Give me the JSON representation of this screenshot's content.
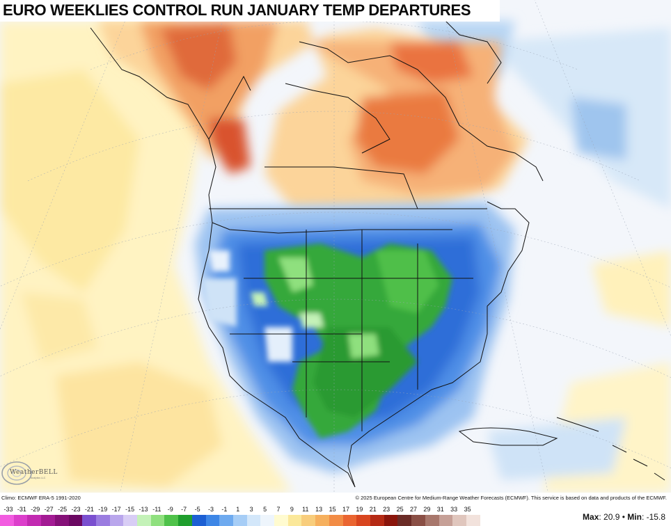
{
  "title": "EURO WEEKLIES CONTROL RUN JANUARY TEMP DEPARTURES",
  "logo": {
    "name": "WeatherBELL",
    "sub": "Analytics LLC"
  },
  "footer": {
    "climo": "Climo: ECMWF ERA-5 1991-2020",
    "copyright": "© 2025 European Centre for Medium-Range Weather Forecasts (ECMWF). This service is based on data and products of the ECMWF.",
    "max_label": "Max",
    "max_value": "20.9",
    "separator": "•",
    "min_label": "Min",
    "min_value": "-15.8"
  },
  "legend": {
    "labels": [
      "-33",
      "-31",
      "-29",
      "-27",
      "-25",
      "-23",
      "-21",
      "-19",
      "-17",
      "-15",
      "-13",
      "-11",
      "-9",
      "-7",
      "-5",
      "-3",
      "-1",
      "1",
      "3",
      "5",
      "7",
      "9",
      "11",
      "13",
      "15",
      "17",
      "19",
      "21",
      "23",
      "25",
      "27",
      "29",
      "31",
      "33",
      "35"
    ],
    "colors": [
      "#f25ce0",
      "#dc3fcb",
      "#c22ab1",
      "#a31b94",
      "#851078",
      "#6b0862",
      "#7a4fcf",
      "#9a7ce0",
      "#b9a6ec",
      "#d8cdf5",
      "#c4f2b8",
      "#8fe07e",
      "#4fc24a",
      "#1f9e2d",
      "#1c5fd3",
      "#3d86e6",
      "#6eaaef",
      "#a6cdf6",
      "#d3e7fa",
      "#eef5fc",
      "#fffbd0",
      "#fbe89a",
      "#f8cd7c",
      "#f6b05e",
      "#f28c45",
      "#ea6531",
      "#d8451f",
      "#b52a14",
      "#8a150b",
      "#6a2b26",
      "#8a4f45",
      "#a8776c",
      "#c6a097",
      "#e0c6bd",
      "#f2e2dc"
    ]
  },
  "regions": {
    "cold_anomaly": "United States",
    "warm_anomaly": "Canada / Alaska"
  }
}
